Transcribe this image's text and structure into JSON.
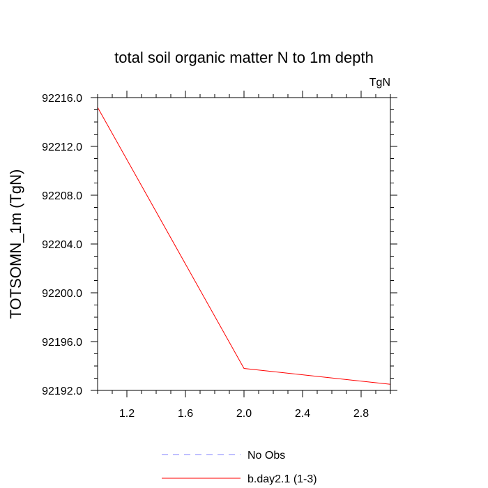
{
  "chart_data": {
    "type": "line",
    "title": "total soil organic matter N to 1m depth",
    "units_label": "TgN",
    "ylabel": "TOTSOMN_1m  (TgN)",
    "xlabel": "",
    "xlim": [
      1.0,
      3.0
    ],
    "ylim": [
      92192.0,
      92216.0
    ],
    "x_ticks": [
      1.2,
      1.6,
      2.0,
      2.4,
      2.8
    ],
    "x_tick_labels": [
      "1.2",
      "1.6",
      "2.0",
      "2.4",
      "2.8"
    ],
    "y_ticks": [
      92192.0,
      92196.0,
      92200.0,
      92204.0,
      92208.0,
      92212.0,
      92216.0
    ],
    "y_tick_labels": [
      "92192.0",
      "92196.0",
      "92200.0",
      "92204.0",
      "92208.0",
      "92212.0",
      "92216.0"
    ],
    "grid": false,
    "legend_position": "bottom",
    "series": [
      {
        "name": "No Obs",
        "color": "#8080ff",
        "dash": "dashed",
        "x": [],
        "y": []
      },
      {
        "name": "b.day2.1 (1-3)",
        "color": "#ff0000",
        "dash": "solid",
        "x": [
          1.0,
          2.0,
          3.0
        ],
        "y": [
          92215.2,
          92193.8,
          92192.5
        ]
      }
    ]
  }
}
